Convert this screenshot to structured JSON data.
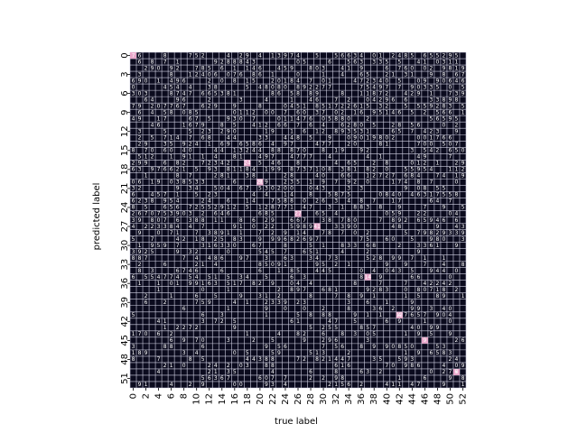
{
  "chart_data": {
    "type": "heatmap",
    "title": "",
    "xlabel": "true label",
    "ylabel": "predicted label",
    "n_classes": 53,
    "x_ticks": [
      "0",
      "2",
      "4",
      "6",
      "8",
      "10",
      "12",
      "14",
      "16",
      "18",
      "20",
      "22",
      "24",
      "26",
      "28",
      "30",
      "32",
      "34",
      "36",
      "38",
      "40",
      "42",
      "44",
      "46",
      "48",
      "50",
      "52"
    ],
    "y_ticks": [
      "0",
      "3",
      "6",
      "9",
      "12",
      "15",
      "18",
      "21",
      "24",
      "27",
      "30",
      "33",
      "36",
      "39",
      "42",
      "45",
      "48",
      "51"
    ],
    "colorbar": false,
    "background_color": "#0b0b1e",
    "grid_color": "#cfcfe2",
    "text_color": "#ffffff",
    "highlight_color": "#e8a6c9",
    "diagonal_highlights": [
      {
        "row": 0,
        "col": 0,
        "value": 7
      },
      {
        "row": 17,
        "col": 18,
        "value": 24
      },
      {
        "row": 20,
        "col": 20,
        "value": 21
      },
      {
        "row": 25,
        "col": 26,
        "value": 27
      },
      {
        "row": 27,
        "col": 29,
        "value": 41
      },
      {
        "row": 35,
        "col": 37,
        "value": 14
      },
      {
        "row": 41,
        "col": 42,
        "value": 12
      },
      {
        "row": 45,
        "col": 46,
        "value": 9
      },
      {
        "row": 50,
        "col": 51,
        "value": 6
      }
    ],
    "off_diagonal_row_ranges": [
      {
        "rows": [
          0,
          4
        ],
        "cols": [
          0,
          50
        ]
      },
      {
        "rows": [
          5,
          14
        ],
        "cols": [
          0,
          30
        ]
      },
      {
        "rows": [
          15,
          33
        ],
        "cols": [
          0,
          52
        ]
      },
      {
        "rows": [
          34,
          52
        ],
        "cols": [
          0,
          52
        ]
      }
    ],
    "cell_values_note": "values annotated as small white digits in each cell; mostly single-digit counts"
  }
}
